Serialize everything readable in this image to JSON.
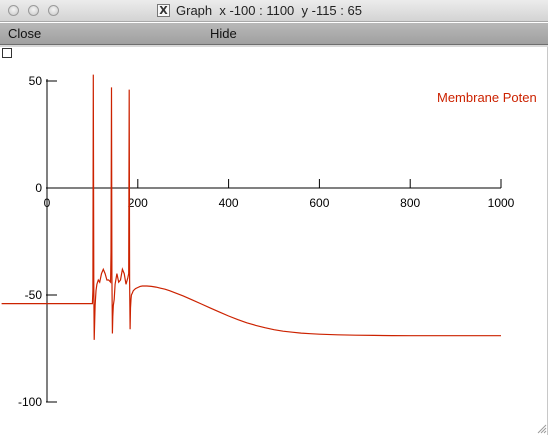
{
  "window": {
    "x_glyph": "X",
    "title": "Graph  x -100 : 1100  y -115 : 65"
  },
  "menu": {
    "close_label": "Close",
    "hide_label": "Hide"
  },
  "colors": {
    "trace": "#cc2200",
    "axis": "#000000"
  },
  "chart_data": {
    "type": "line",
    "title": "",
    "xlabel": "",
    "ylabel": "",
    "xlim": [
      -100,
      1100
    ],
    "ylim": [
      -115,
      65
    ],
    "x_ticks": [
      0,
      200,
      400,
      600,
      800,
      1000
    ],
    "x_tick_labels": [
      "0",
      "200",
      "400",
      "600",
      "800",
      "1000"
    ],
    "y_ticks": [
      50,
      0,
      -50,
      -100
    ],
    "y_tick_labels": [
      "50",
      "0",
      "-50",
      "-100"
    ],
    "grid": false,
    "legend_position": "top-right",
    "series": [
      {
        "name": "Membrane Poten",
        "x": [
          -100,
          100,
          101,
          102,
          103,
          104,
          105,
          106,
          108,
          110,
          113,
          116,
          120,
          124,
          128,
          132,
          136,
          140,
          141,
          142,
          143,
          144,
          145,
          146,
          148,
          150,
          154,
          158,
          162,
          166,
          170,
          174,
          178,
          180,
          181,
          182,
          183,
          184,
          185,
          186,
          188,
          190,
          195,
          200,
          205,
          210,
          220,
          230,
          240,
          250,
          260,
          270,
          280,
          300,
          320,
          340,
          360,
          380,
          400,
          420,
          440,
          460,
          480,
          500,
          520,
          540,
          560,
          580,
          600,
          640,
          680,
          720,
          760,
          800,
          850,
          900,
          950,
          1000
        ],
        "y": [
          -54,
          -54,
          -48,
          53,
          -45,
          -71,
          -62,
          -55,
          -48,
          -45,
          -43,
          -44,
          -40,
          -38,
          -40,
          -43,
          -43,
          -44,
          -30,
          47,
          -40,
          -68,
          -60,
          -55,
          -52,
          -45,
          -40,
          -44,
          -43,
          -38,
          -40,
          -45,
          -42,
          -40,
          46,
          -43,
          -66,
          -56,
          -52,
          -50,
          -49,
          -48,
          -47,
          -46.5,
          -46,
          -45.8,
          -45.8,
          -46,
          -46.3,
          -46.8,
          -47.3,
          -48,
          -48.8,
          -50.4,
          -52.3,
          -54.2,
          -56.1,
          -58,
          -59.8,
          -61.5,
          -63,
          -64.2,
          -65.3,
          -66.2,
          -66.9,
          -67.4,
          -67.8,
          -68.1,
          -68.3,
          -68.6,
          -68.8,
          -68.9,
          -68.95,
          -69,
          -69,
          -69,
          -69,
          -69
        ]
      }
    ]
  }
}
